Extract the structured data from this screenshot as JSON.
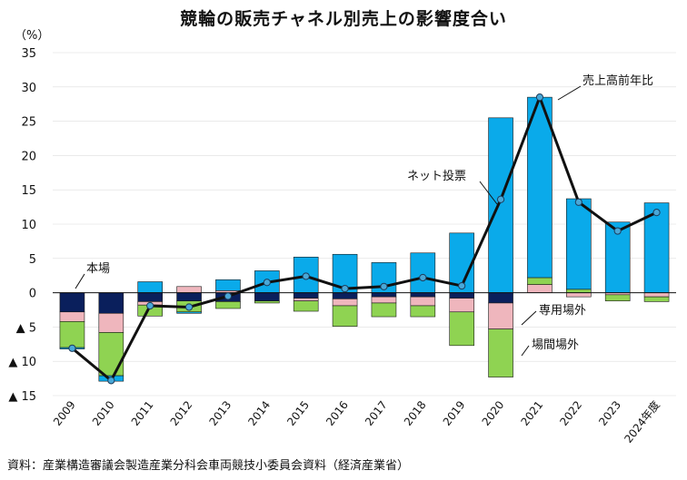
{
  "chart_data": {
    "type": "stacked-bar-with-line",
    "title": "競輪の販売チャネル別売上の影響度合い",
    "unit_label": "（%）",
    "ylim": [
      -15,
      35
    ],
    "ytick_values": [
      35,
      30,
      25,
      20,
      15,
      10,
      5,
      0,
      -5,
      -10,
      -15
    ],
    "ytick_labels": [
      "35",
      "30",
      "25",
      "20",
      "15",
      "10",
      "5",
      "0",
      "▲ 5",
      "▲ 10",
      "▲ 15"
    ],
    "categories": [
      "2009",
      "2010",
      "2011",
      "2012",
      "2013",
      "2014",
      "2015",
      "2016",
      "2017",
      "2018",
      "2019",
      "2020",
      "2021",
      "2022",
      "2023",
      "2024年度"
    ],
    "series": [
      {
        "name": "本場",
        "color": "#0a1f5c",
        "values": [
          -2.8,
          -3.0,
          -1.3,
          -1.2,
          -1.3,
          -1.2,
          -0.8,
          -0.9,
          -0.6,
          -0.6,
          -0.8,
          -1.5,
          0.0,
          0.0,
          0.0,
          0.0
        ]
      },
      {
        "name": "専用場外",
        "color": "#efb6bd",
        "values": [
          -1.4,
          -2.8,
          -0.5,
          0.9,
          0.3,
          0.0,
          -0.4,
          -1.0,
          -0.9,
          -1.3,
          -2.0,
          -3.8,
          1.2,
          -0.6,
          -0.3,
          -0.6
        ]
      },
      {
        "name": "場間場外",
        "color": "#8fd352",
        "values": [
          -3.8,
          -6.3,
          -1.6,
          -1.6,
          -1.0,
          -0.3,
          -1.5,
          -3.0,
          -2.0,
          -1.6,
          -4.9,
          -7.0,
          1.0,
          0.5,
          -0.9,
          -0.7
        ]
      },
      {
        "name": "ネット投票",
        "color": "#0aaaea",
        "values": [
          -0.2,
          -0.8,
          1.6,
          -0.2,
          1.6,
          3.2,
          5.2,
          5.6,
          4.4,
          5.8,
          8.7,
          25.5,
          26.3,
          13.2,
          10.3,
          13.1
        ]
      }
    ],
    "line": {
      "name": "売上高前年比",
      "color": "#111111",
      "values": [
        -8.1,
        -12.8,
        -1.9,
        -2.1,
        -0.5,
        1.5,
        2.4,
        0.6,
        0.9,
        2.2,
        1.0,
        13.6,
        28.5,
        13.2,
        9.0,
        11.7
      ]
    },
    "annotations": [
      {
        "text": "本場"
      },
      {
        "text": "ネット投票"
      },
      {
        "text": "売上高前年比"
      },
      {
        "text": "専用場外"
      },
      {
        "text": "場間場外"
      }
    ]
  },
  "source": "資料：産業構造審議会製造産業分科会車両競技小委員会資料（経済産業省）"
}
